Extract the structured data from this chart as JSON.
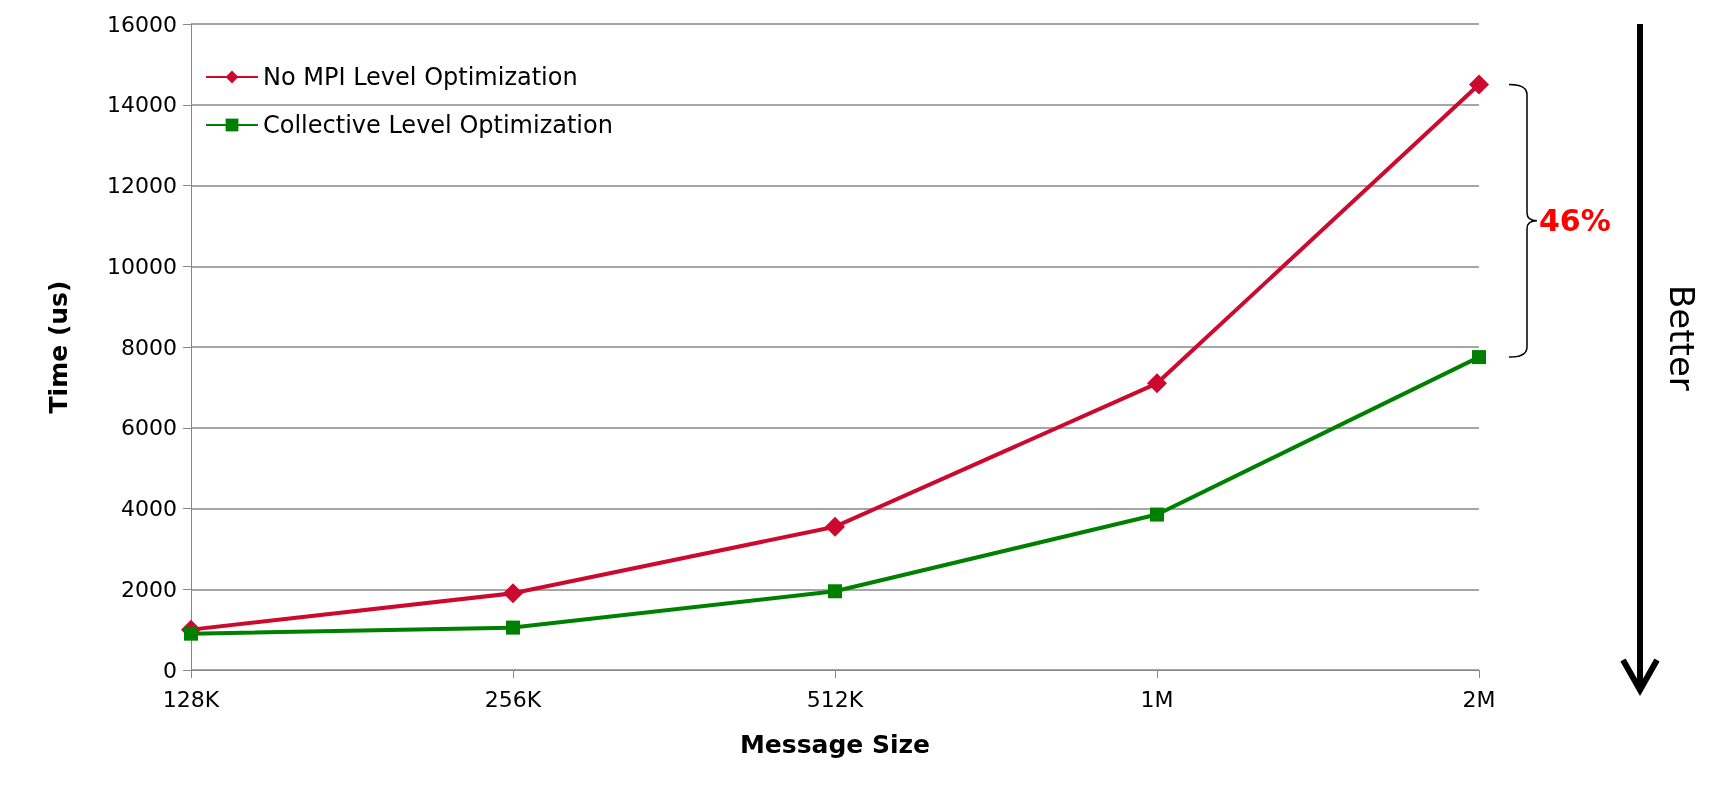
{
  "chart_data": {
    "type": "line",
    "xlabel": "Message Size",
    "ylabel": "Time (us)",
    "categories": [
      "128K",
      "256K",
      "512K",
      "1M",
      "2M"
    ],
    "series": [
      {
        "name": "No MPI Level Optimization",
        "color": "#cc0a2f",
        "marker": "diamond",
        "values": [
          1000,
          1900,
          3550,
          7100,
          14500
        ]
      },
      {
        "name": "Collective Level Optimization",
        "color": "#008000",
        "marker": "square",
        "values": [
          900,
          1050,
          1950,
          3850,
          7750
        ]
      }
    ],
    "ylim": [
      0,
      16000
    ],
    "yticks": [
      0,
      2000,
      4000,
      6000,
      8000,
      10000,
      12000,
      14000,
      16000
    ],
    "grid": "y",
    "legend": "top left",
    "line_style": "solid",
    "annotations": [
      "46%",
      "Better"
    ]
  }
}
